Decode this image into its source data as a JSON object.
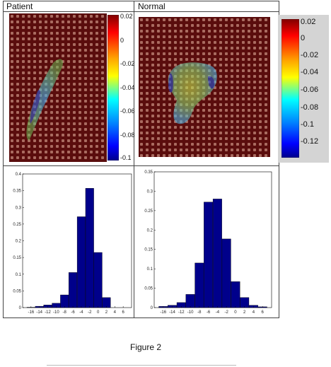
{
  "figure": {
    "caption": "Figure 2",
    "panels": {
      "left_label": "Patient",
      "right_label": "Normal"
    }
  },
  "colorbar_left": {
    "tick_labels": [
      "0.02",
      "0",
      "-0.02",
      "-0.04",
      "-0.06",
      "-0.08",
      "-0.1"
    ]
  },
  "colorbar_right": {
    "tick_labels": [
      "0.02",
      "0",
      "-0.02",
      "-0.04",
      "-0.06",
      "-0.08",
      "-0.1",
      "-0.12"
    ]
  },
  "chart_data": [
    {
      "type": "bar",
      "x": [
        -16,
        -14,
        -12,
        -10,
        -8,
        -6,
        -4,
        -2,
        0,
        2,
        4,
        6
      ],
      "x_tick_labels": [
        "-16",
        "-14",
        "-12",
        "-10",
        "-8",
        "-6",
        "-4",
        "-2",
        "0",
        "2",
        "4",
        "6"
      ],
      "values": [
        0.001,
        0.004,
        0.008,
        0.013,
        0.038,
        0.105,
        0.272,
        0.357,
        0.165,
        0.03,
        0,
        0
      ],
      "ylim": [
        0,
        0.4
      ],
      "y_tick_values": [
        0,
        0.05,
        0.1,
        0.15,
        0.2,
        0.25,
        0.3,
        0.35,
        0.4
      ],
      "y_tick_labels": [
        "0",
        "0.05",
        "0.1",
        "0.15",
        "0.2",
        "0.25",
        "0.3",
        "0.35",
        "0.4"
      ],
      "xlim": [
        -18,
        8
      ],
      "color": "#00008b",
      "grid": false
    },
    {
      "type": "bar",
      "x": [
        -16,
        -14,
        -12,
        -10,
        -8,
        -6,
        -4,
        -2,
        0,
        2,
        4,
        6
      ],
      "x_tick_labels": [
        "-16",
        "-14",
        "-12",
        "-10",
        "-8",
        "-6",
        "-4",
        "-2",
        "0",
        "2",
        "4",
        "6"
      ],
      "values": [
        0.003,
        0.006,
        0.013,
        0.034,
        0.115,
        0.272,
        0.28,
        0.177,
        0.067,
        0.026,
        0.006,
        0.002
      ],
      "ylim": [
        0,
        0.35
      ],
      "y_tick_values": [
        0,
        0.05,
        0.1,
        0.15,
        0.2,
        0.25,
        0.3,
        0.35
      ],
      "y_tick_labels": [
        "0",
        "0.05",
        "0.1",
        "0.15",
        "0.2",
        "0.25",
        "0.3",
        "0.35"
      ],
      "xlim": [
        -18,
        8
      ],
      "color": "#00008b",
      "grid": false
    }
  ]
}
